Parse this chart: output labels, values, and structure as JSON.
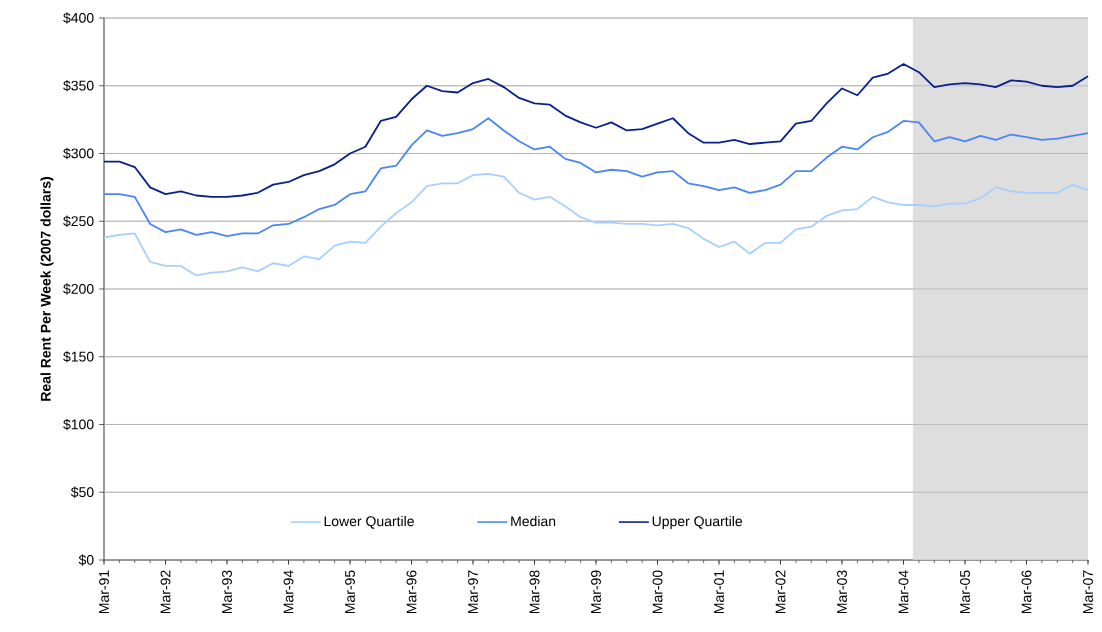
{
  "chart_data": {
    "type": "line",
    "ylabel": "Real Rent Per Week (2007 dollars)",
    "categories": [
      "Mar-91",
      null,
      null,
      null,
      "Mar-92",
      null,
      null,
      null,
      "Mar-93",
      null,
      null,
      null,
      "Mar-94",
      null,
      null,
      null,
      "Mar-95",
      null,
      null,
      null,
      "Mar-96",
      null,
      null,
      null,
      "Mar-97",
      null,
      null,
      null,
      "Mar-98",
      null,
      null,
      null,
      "Mar-99",
      null,
      null,
      null,
      "Mar-00",
      null,
      null,
      null,
      "Mar-01",
      null,
      null,
      null,
      "Mar-02",
      null,
      null,
      null,
      "Mar-03",
      null,
      null,
      null,
      "Mar-04",
      null,
      null,
      null,
      "Mar-05",
      null,
      null,
      null,
      "Mar-06",
      null,
      null,
      null,
      "Mar-07"
    ],
    "series": [
      {
        "name": "Lower Quartile",
        "color": "#a6d0ff",
        "values": [
          238,
          240,
          241,
          220,
          217,
          217,
          210,
          212,
          213,
          216,
          213,
          219,
          217,
          224,
          222,
          232,
          235,
          234,
          246,
          256,
          264,
          276,
          278,
          278,
          284,
          285,
          283,
          271,
          266,
          268,
          261,
          253,
          249,
          249,
          248,
          248,
          247,
          248,
          245,
          237,
          231,
          235,
          226,
          234,
          234,
          244,
          246,
          254,
          258,
          259,
          268,
          264,
          262,
          262,
          261,
          263,
          263,
          267,
          275,
          272,
          271,
          271,
          271,
          277,
          273
        ]
      },
      {
        "name": "Median",
        "color": "#4a86f5",
        "values": [
          270,
          270,
          268,
          248,
          242,
          244,
          240,
          242,
          239,
          241,
          241,
          247,
          248,
          253,
          259,
          262,
          270,
          272,
          289,
          291,
          306,
          317,
          313,
          315,
          318,
          326,
          317,
          309,
          303,
          305,
          296,
          293,
          286,
          288,
          287,
          283,
          286,
          287,
          278,
          276,
          273,
          275,
          271,
          273,
          277,
          287,
          287,
          297,
          305,
          303,
          312,
          316,
          324,
          323,
          309,
          312,
          309,
          313,
          310,
          314,
          312,
          310,
          311,
          313,
          315
        ]
      },
      {
        "name": "Upper Quartile",
        "color": "#0a1f8f",
        "values": [
          294,
          294,
          290,
          275,
          270,
          272,
          269,
          268,
          268,
          269,
          271,
          277,
          279,
          284,
          287,
          292,
          300,
          305,
          324,
          327,
          340,
          350,
          346,
          345,
          352,
          355,
          349,
          341,
          337,
          336,
          328,
          323,
          319,
          323,
          317,
          318,
          322,
          326,
          315,
          308,
          308,
          310,
          307,
          308,
          309,
          322,
          324,
          337,
          348,
          343,
          356,
          359,
          366,
          360,
          349,
          351,
          352,
          351,
          349,
          354,
          353,
          350,
          349,
          350,
          357
        ]
      }
    ],
    "ylim": [
      0,
      400
    ],
    "yticks": [
      {
        "value": 0,
        "label": "$0"
      },
      {
        "value": 50,
        "label": "$50"
      },
      {
        "value": 100,
        "label": "$100"
      },
      {
        "value": 150,
        "label": "$150"
      },
      {
        "value": 200,
        "label": "$200"
      },
      {
        "value": 250,
        "label": "$250"
      },
      {
        "value": 300,
        "label": "$300"
      },
      {
        "value": 350,
        "label": "$350"
      },
      {
        "value": 400,
        "label": "$400"
      }
    ],
    "grid": "y",
    "legend": "bottom",
    "marker": "none",
    "line_style": "solid"
  }
}
